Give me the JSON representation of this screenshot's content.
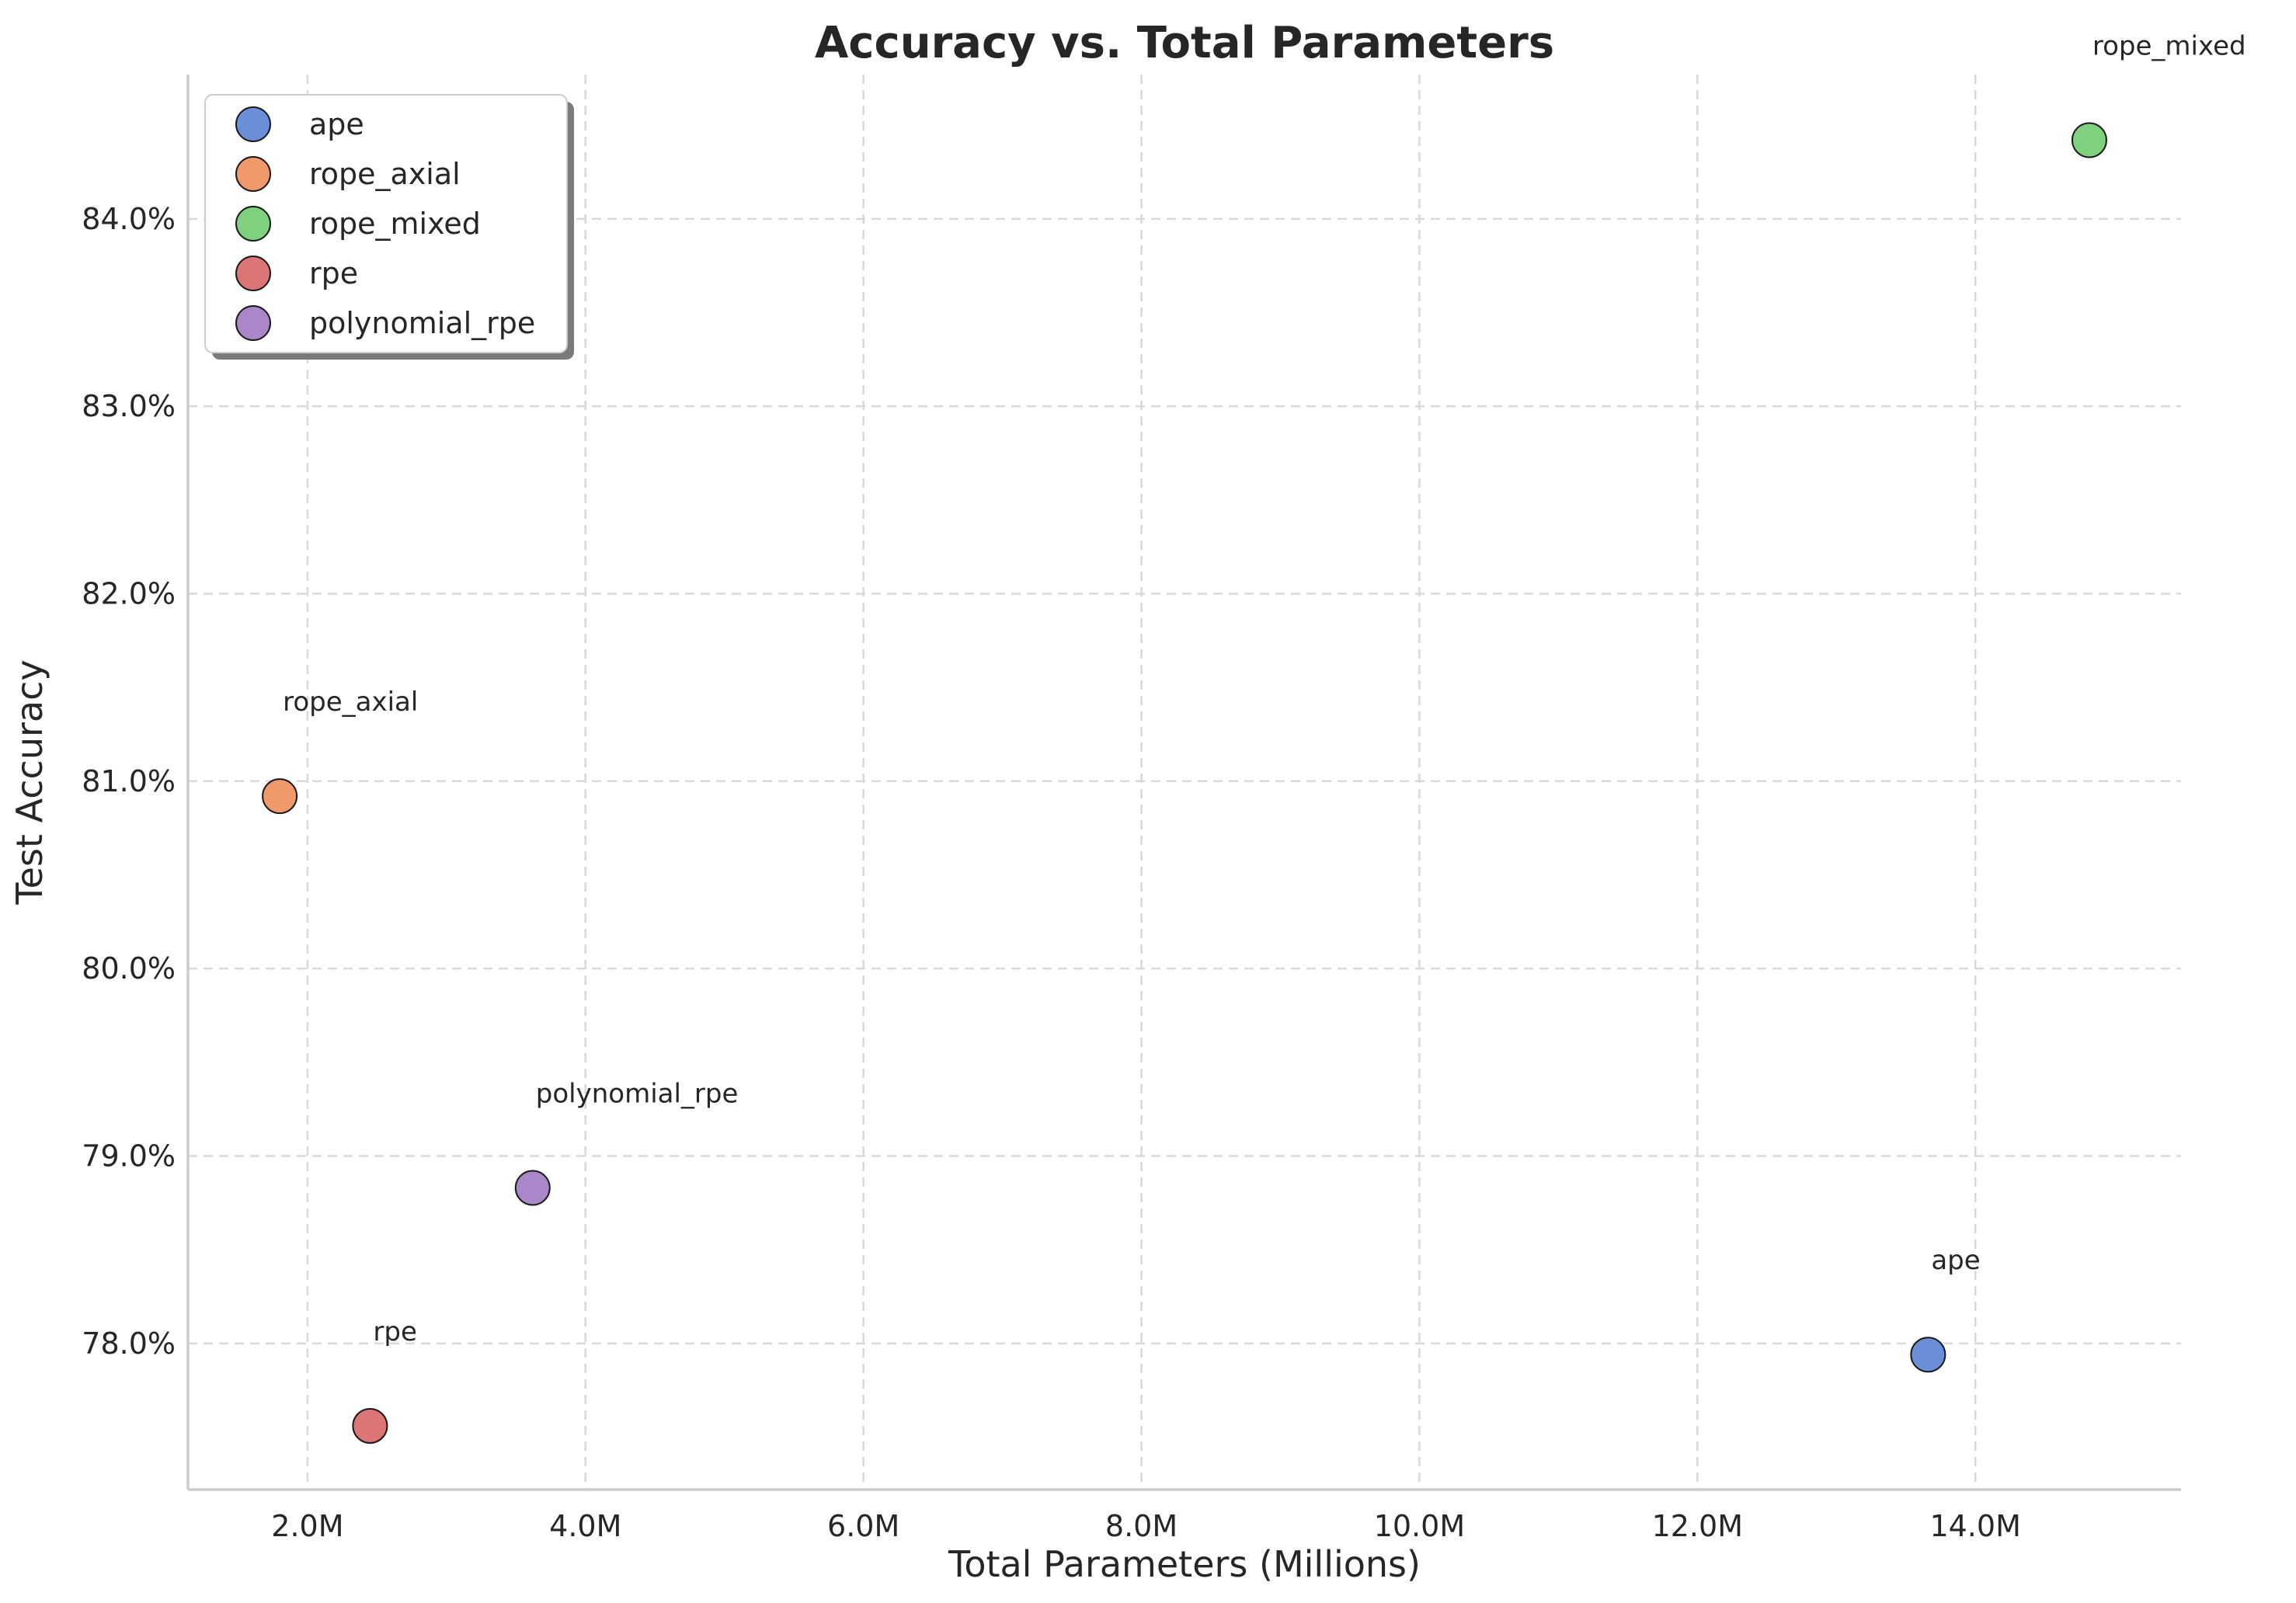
{
  "chart_data": {
    "type": "scatter",
    "title": "Accuracy vs. Total Parameters",
    "xlabel": "Total Parameters (Millions)",
    "ylabel": "Test Accuracy",
    "xlim": [
      1.14,
      15.48
    ],
    "ylim": [
      77.22,
      84.77
    ],
    "x_ticks": [
      2,
      4,
      6,
      8,
      10,
      12,
      14
    ],
    "x_tick_labels": [
      "2.0M",
      "4.0M",
      "6.0M",
      "8.0M",
      "10.0M",
      "12.0M",
      "14.0M"
    ],
    "y_ticks": [
      78,
      79,
      80,
      81,
      82,
      83,
      84
    ],
    "y_tick_labels": [
      "78.0%",
      "79.0%",
      "80.0%",
      "81.0%",
      "82.0%",
      "83.0%",
      "84.0%"
    ],
    "grid": true,
    "legend_position": "top-left",
    "series": [
      {
        "name": "ape",
        "x": 13.66,
        "y": 77.94,
        "color": "#6a8fd8",
        "annotation": "ape"
      },
      {
        "name": "rope_axial",
        "x": 1.8,
        "y": 80.92,
        "color": "#f09a6c",
        "annotation": "rope_axial"
      },
      {
        "name": "rope_mixed",
        "x": 14.82,
        "y": 84.42,
        "color": "#7fd07f",
        "annotation": "rope_mixed"
      },
      {
        "name": "rpe",
        "x": 2.45,
        "y": 77.56,
        "color": "#dc7676",
        "annotation": "rpe"
      },
      {
        "name": "polynomial_rpe",
        "x": 3.62,
        "y": 78.83,
        "color": "#a987c8",
        "annotation": "polynomial_rpe"
      }
    ]
  }
}
